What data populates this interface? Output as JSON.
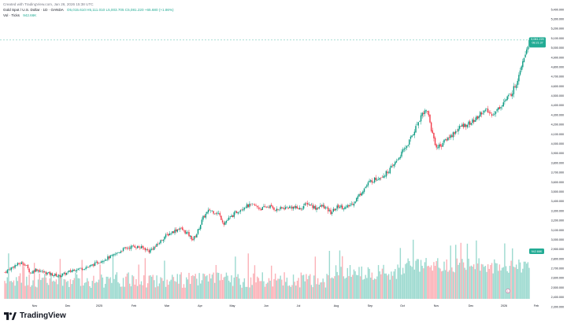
{
  "header": {
    "created_with": "Created with TradingView.com, Jan 26, 2026 15:38 UTC",
    "symbol": "Gold Spot / U.S. Dollar · 1D · OANDA",
    "ohlc": "O5,015.610 H5,111.010 L5,003.705 C5,081.220 +65.680 (+1.86%)",
    "volume_label": "Vol · Ticks",
    "volume_value": "942.66K"
  },
  "chart_data": {
    "type": "candlestick",
    "title": "Gold Spot / U.S. Dollar · 1D · OANDA",
    "y_axis": {
      "ticks": [
        "5,400.000",
        "5,300.000",
        "5,200.000",
        "5,100.000",
        "5,000.000",
        "4,900.000",
        "4,800.000",
        "4,700.000",
        "4,600.000",
        "4,500.000",
        "4,400.000",
        "4,300.000",
        "4,200.000",
        "4,100.000",
        "4,000.000",
        "3,900.000",
        "3,800.000",
        "3,700.000",
        "3,600.000",
        "3,500.000",
        "3,400.000",
        "3,300.000",
        "3,200.000",
        "3,100.000",
        "3,000.000",
        "2,900.000",
        "2,800.000",
        "2,700.000",
        "2,600.000",
        "2,500.000",
        "2,400.000",
        "2,300.000"
      ],
      "min": 2300,
      "max": 5400
    },
    "x_axis": {
      "labels": [
        "Nov",
        "Dec",
        "2025",
        "Feb",
        "Mar",
        "Apr",
        "May",
        "Jun",
        "Jul",
        "Aug",
        "Sep",
        "Oct",
        "Nov",
        "Dec",
        "2026",
        "Feb"
      ]
    },
    "last_price": {
      "value": "5,081.220",
      "countdown": "08:21:37",
      "price_num": 5081.22
    },
    "volume_last": "942.66K",
    "anchors": [
      [
        0,
        2660
      ],
      [
        8,
        2730
      ],
      [
        14,
        2760
      ],
      [
        17,
        2720
      ],
      [
        20,
        2650
      ],
      [
        24,
        2690
      ],
      [
        30,
        2660
      ],
      [
        36,
        2640
      ],
      [
        42,
        2620
      ],
      [
        48,
        2650
      ],
      [
        54,
        2690
      ],
      [
        60,
        2700
      ],
      [
        66,
        2720
      ],
      [
        72,
        2760
      ],
      [
        78,
        2800
      ],
      [
        84,
        2830
      ],
      [
        92,
        2900
      ],
      [
        100,
        2930
      ],
      [
        108,
        2910
      ],
      [
        112,
        2880
      ],
      [
        118,
        2940
      ],
      [
        124,
        3030
      ],
      [
        130,
        3080
      ],
      [
        136,
        3120
      ],
      [
        142,
        3060
      ],
      [
        146,
        3000
      ],
      [
        149,
        3060
      ],
      [
        154,
        3230
      ],
      [
        159,
        3310
      ],
      [
        162,
        3290
      ],
      [
        166,
        3270
      ],
      [
        170,
        3170
      ],
      [
        175,
        3230
      ],
      [
        181,
        3300
      ],
      [
        187,
        3350
      ],
      [
        193,
        3360
      ],
      [
        199,
        3320
      ],
      [
        205,
        3350
      ],
      [
        211,
        3310
      ],
      [
        217,
        3330
      ],
      [
        223,
        3340
      ],
      [
        229,
        3320
      ],
      [
        235,
        3380
      ],
      [
        241,
        3330
      ],
      [
        247,
        3350
      ],
      [
        253,
        3280
      ],
      [
        259,
        3350
      ],
      [
        265,
        3330
      ],
      [
        271,
        3390
      ],
      [
        277,
        3500
      ],
      [
        283,
        3600
      ],
      [
        289,
        3640
      ],
      [
        295,
        3680
      ],
      [
        301,
        3760
      ],
      [
        307,
        3880
      ],
      [
        313,
        4000
      ],
      [
        319,
        4170
      ],
      [
        324,
        4320
      ],
      [
        328,
        4350
      ],
      [
        331,
        4150
      ],
      [
        335,
        3960
      ],
      [
        339,
        3990
      ],
      [
        343,
        4050
      ],
      [
        346,
        4080
      ],
      [
        350,
        4130
      ],
      [
        354,
        4180
      ],
      [
        358,
        4200
      ],
      [
        362,
        4220
      ],
      [
        366,
        4260
      ],
      [
        370,
        4330
      ],
      [
        374,
        4340
      ],
      [
        377,
        4310
      ],
      [
        381,
        4330
      ],
      [
        385,
        4400
      ],
      [
        389,
        4460
      ],
      [
        393,
        4520
      ],
      [
        397,
        4630
      ],
      [
        401,
        4830
      ],
      [
        405,
        5000
      ],
      [
        407,
        5081
      ]
    ]
  }
}
